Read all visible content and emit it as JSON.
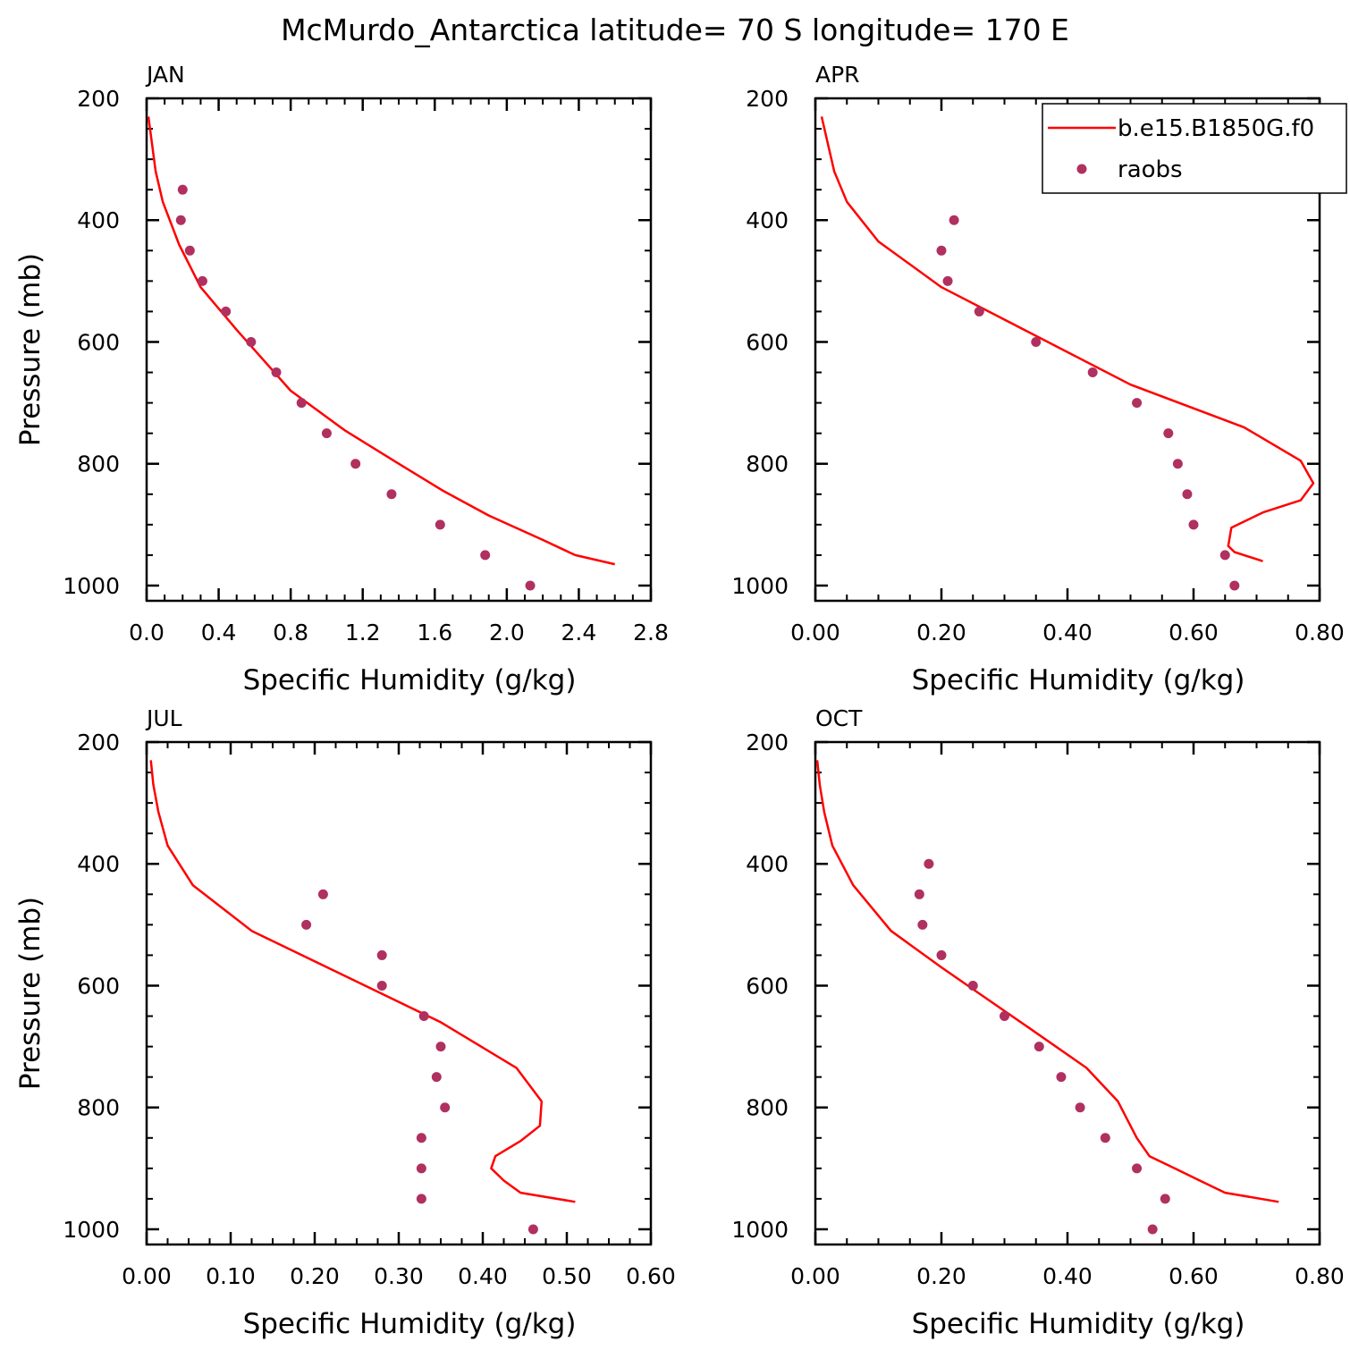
{
  "title": "McMurdo_Antarctica  latitude= 70 S longitude= 170 E",
  "colors": {
    "model": "#ff0000",
    "obs": "#b03060",
    "axis": "#000000"
  },
  "legend": {
    "model_label": "b.e15.B1850G.f0",
    "obs_label": "raobs",
    "placement": "top-right of APR panel"
  },
  "chart_data": [
    {
      "type": "line",
      "panel": "JAN",
      "xlabel": "Specific Humidity (g/kg)",
      "ylabel": "Pressure (mb)",
      "xlim": [
        0.0,
        2.8
      ],
      "ylim": [
        1025,
        200
      ],
      "xticks": [
        0.0,
        0.4,
        0.8,
        1.2,
        1.6,
        2.0,
        2.4,
        2.8
      ],
      "xtick_labels": [
        "0.0",
        "0.4",
        "0.8",
        "1.2",
        "1.6",
        "2.0",
        "2.4",
        "2.8"
      ],
      "yticks": [
        200,
        400,
        600,
        800,
        1000
      ],
      "ytick_labels": [
        "200",
        "400",
        "600",
        "800",
        "1000"
      ],
      "series": [
        {
          "name": "b.e15.B1850G.f0",
          "style": "line",
          "x": [
            0.01,
            0.05,
            0.09,
            0.18,
            0.3,
            0.5,
            0.8,
            1.1,
            1.4,
            1.65,
            1.9,
            2.2,
            2.38,
            2.6
          ],
          "y": [
            230,
            320,
            370,
            440,
            510,
            580,
            680,
            745,
            800,
            845,
            885,
            925,
            950,
            965
          ]
        },
        {
          "name": "raobs",
          "style": "marker",
          "x": [
            0.2,
            0.19,
            0.24,
            0.31,
            0.44,
            0.58,
            0.72,
            0.86,
            1.0,
            1.16,
            1.36,
            1.63,
            1.88,
            2.13
          ],
          "y": [
            350,
            400,
            450,
            500,
            550,
            600,
            650,
            700,
            750,
            800,
            850,
            900,
            950,
            1000
          ]
        }
      ]
    },
    {
      "type": "line",
      "panel": "APR",
      "xlabel": "Specific Humidity (g/kg)",
      "ylabel": "",
      "xlim": [
        0.0,
        0.8
      ],
      "ylim": [
        1025,
        200
      ],
      "xticks": [
        0.0,
        0.2,
        0.4,
        0.6,
        0.8
      ],
      "xtick_labels": [
        "0.00",
        "0.20",
        "0.40",
        "0.60",
        "0.80"
      ],
      "yticks": [
        200,
        400,
        600,
        800,
        1000
      ],
      "ytick_labels": [
        "200",
        "400",
        "600",
        "800",
        "1000"
      ],
      "series": [
        {
          "name": "b.e15.B1850G.f0",
          "style": "line",
          "x": [
            0.01,
            0.03,
            0.05,
            0.1,
            0.2,
            0.35,
            0.5,
            0.68,
            0.77,
            0.79,
            0.77,
            0.71,
            0.66,
            0.655,
            0.665,
            0.71
          ],
          "y": [
            230,
            320,
            370,
            435,
            510,
            590,
            670,
            740,
            795,
            832,
            860,
            880,
            905,
            935,
            945,
            960
          ]
        },
        {
          "name": "raobs",
          "style": "marker",
          "x": [
            0.22,
            0.2,
            0.21,
            0.26,
            0.35,
            0.44,
            0.51,
            0.56,
            0.575,
            0.59,
            0.6,
            0.65,
            0.665
          ],
          "y": [
            400,
            450,
            500,
            550,
            600,
            650,
            700,
            750,
            800,
            850,
            900,
            950,
            1000
          ]
        }
      ]
    },
    {
      "type": "line",
      "panel": "JUL",
      "xlabel": "Specific Humidity (g/kg)",
      "ylabel": "Pressure (mb)",
      "xlim": [
        0.0,
        0.6
      ],
      "ylim": [
        1025,
        200
      ],
      "xticks": [
        0.0,
        0.1,
        0.2,
        0.3,
        0.4,
        0.5,
        0.6
      ],
      "xtick_labels": [
        "0.00",
        "0.10",
        "0.20",
        "0.30",
        "0.40",
        "0.50",
        "0.60"
      ],
      "yticks": [
        200,
        400,
        600,
        800,
        1000
      ],
      "ytick_labels": [
        "200",
        "400",
        "600",
        "800",
        "1000"
      ],
      "series": [
        {
          "name": "b.e15.B1850G.f0",
          "style": "line",
          "x": [
            0.005,
            0.008,
            0.014,
            0.025,
            0.055,
            0.125,
            0.23,
            0.35,
            0.44,
            0.47,
            0.468,
            0.445,
            0.415,
            0.41,
            0.425,
            0.445,
            0.51
          ],
          "y": [
            230,
            270,
            315,
            370,
            435,
            510,
            580,
            660,
            735,
            790,
            830,
            855,
            880,
            900,
            920,
            940,
            955
          ]
        },
        {
          "name": "raobs",
          "style": "marker",
          "x": [
            0.21,
            0.19,
            0.28,
            0.28,
            0.33,
            0.35,
            0.345,
            0.355,
            0.327,
            0.327,
            0.327,
            0.46
          ],
          "y": [
            450,
            500,
            550,
            600,
            650,
            700,
            750,
            800,
            850,
            900,
            950,
            1000
          ]
        }
      ]
    },
    {
      "type": "line",
      "panel": "OCT",
      "xlabel": "Specific Humidity (g/kg)",
      "ylabel": "",
      "xlim": [
        0.0,
        0.8
      ],
      "ylim": [
        1025,
        200
      ],
      "xticks": [
        0.0,
        0.2,
        0.4,
        0.6,
        0.8
      ],
      "xtick_labels": [
        "0.00",
        "0.20",
        "0.40",
        "0.60",
        "0.80"
      ],
      "yticks": [
        200,
        400,
        600,
        800,
        1000
      ],
      "ytick_labels": [
        "200",
        "400",
        "600",
        "800",
        "1000"
      ],
      "series": [
        {
          "name": "b.e15.B1850G.f0",
          "style": "line",
          "x": [
            0.003,
            0.007,
            0.014,
            0.027,
            0.06,
            0.12,
            0.2,
            0.27,
            0.34,
            0.43,
            0.48,
            0.51,
            0.53,
            0.57,
            0.61,
            0.65,
            0.735
          ],
          "y": [
            230,
            270,
            315,
            370,
            435,
            510,
            570,
            620,
            670,
            735,
            790,
            850,
            880,
            900,
            920,
            940,
            955
          ]
        },
        {
          "name": "raobs",
          "style": "marker",
          "x": [
            0.18,
            0.165,
            0.17,
            0.2,
            0.25,
            0.3,
            0.355,
            0.39,
            0.42,
            0.46,
            0.51,
            0.555,
            0.535
          ],
          "y": [
            400,
            450,
            500,
            550,
            600,
            650,
            700,
            750,
            800,
            850,
            900,
            950,
            1000
          ]
        }
      ]
    }
  ]
}
